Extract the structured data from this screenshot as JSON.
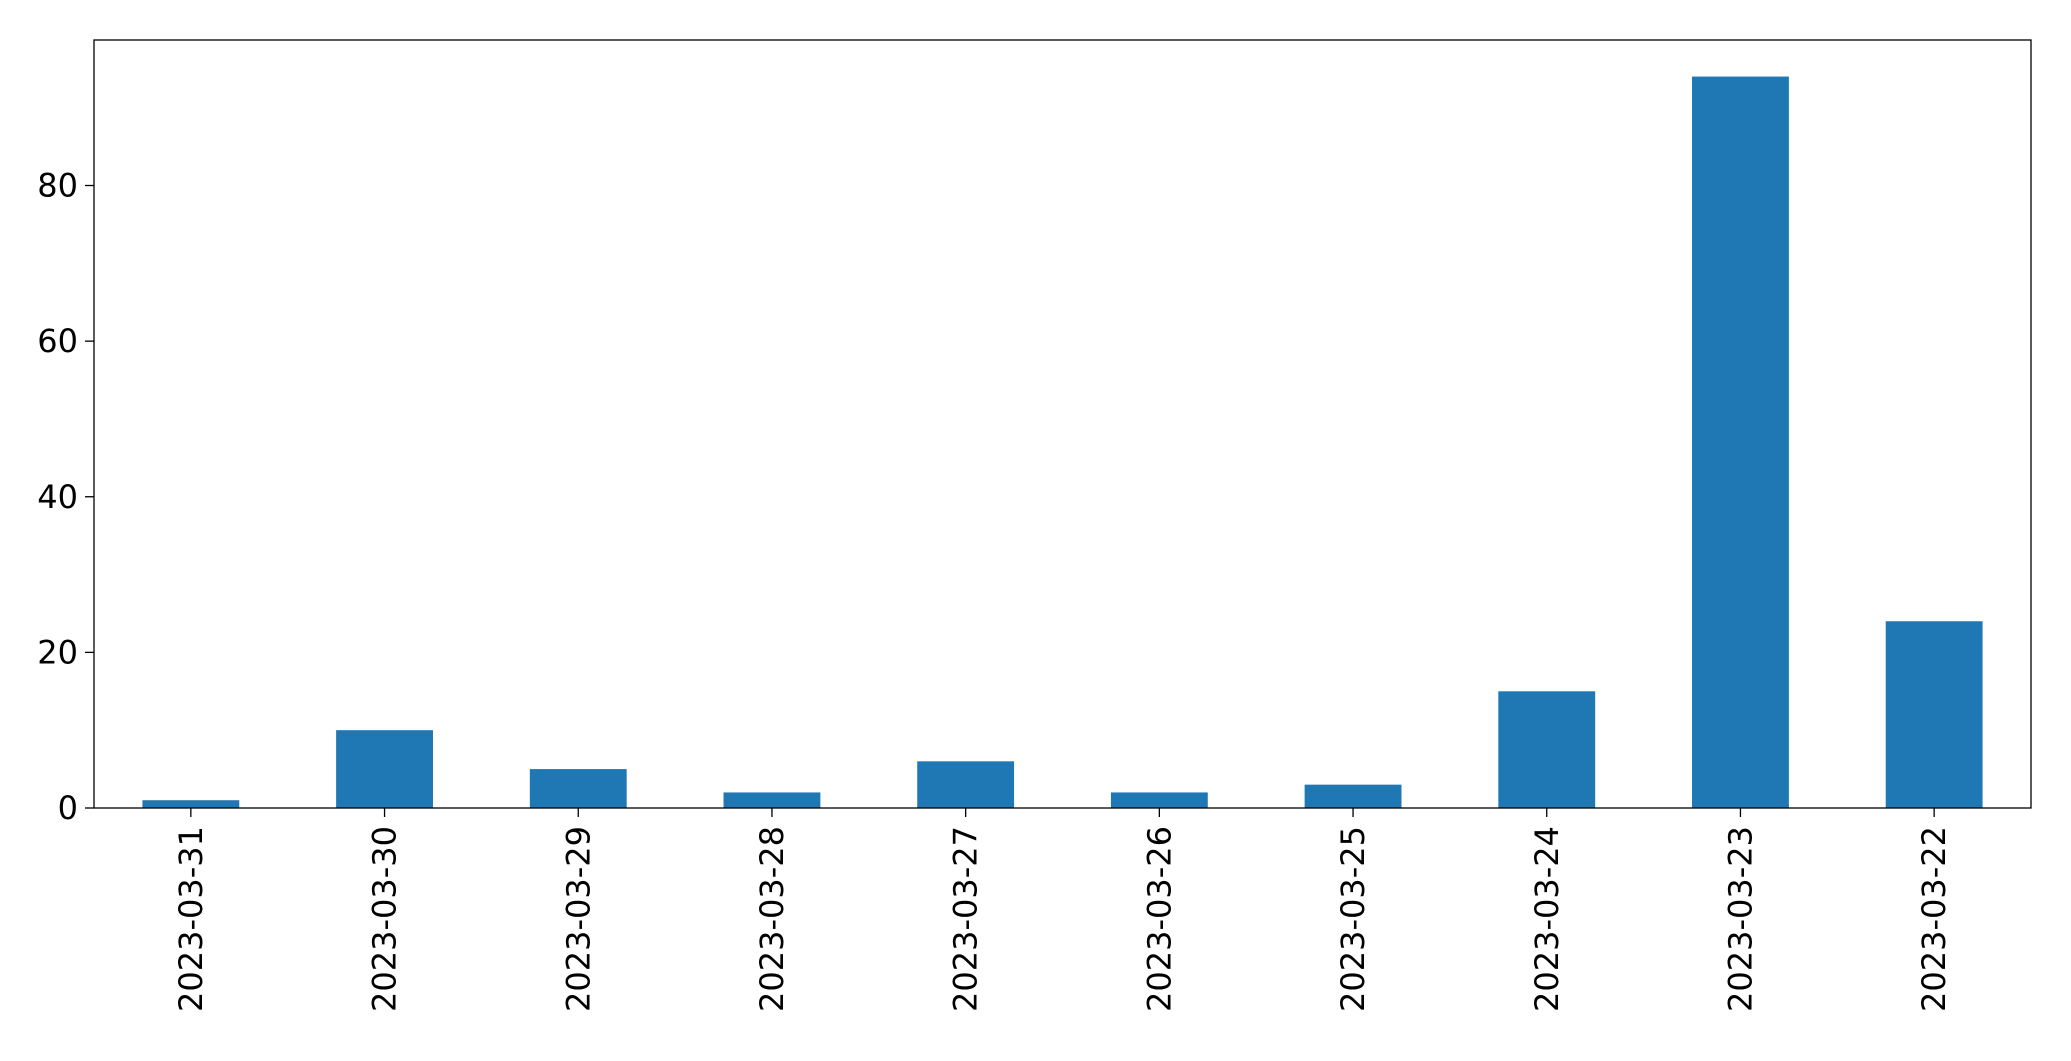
{
  "chart_data": {
    "type": "bar",
    "categories": [
      "2023-03-31",
      "2023-03-30",
      "2023-03-29",
      "2023-03-28",
      "2023-03-27",
      "2023-03-26",
      "2023-03-25",
      "2023-03-24",
      "2023-03-23",
      "2023-03-22"
    ],
    "values": [
      1,
      10,
      5,
      2,
      6,
      2,
      3,
      15,
      94,
      24
    ],
    "color": "#1f77b4",
    "ylim": [
      0,
      98.7
    ],
    "yticks": [
      0,
      20,
      40,
      60,
      80
    ],
    "grid": false
  }
}
